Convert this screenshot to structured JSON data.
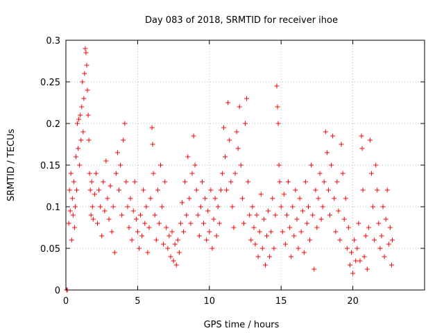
{
  "chart_data": {
    "type": "scatter",
    "title": "Day 083 of 2018, SRMTID for receiver ihoe",
    "xlabel": "GPS time / hours",
    "ylabel": "SRMTID / TECUs",
    "xlim": [
      0,
      25
    ],
    "ylim": [
      0,
      0.3
    ],
    "x_ticks": [
      0,
      5,
      10,
      15,
      20
    ],
    "y_ticks": [
      0,
      0.05,
      0.1,
      0.15,
      0.2,
      0.25,
      0.3
    ],
    "x_tick_labels": [
      "0",
      "5",
      "10",
      "15",
      "20"
    ],
    "y_tick_labels": [
      "0",
      "0.05",
      "0.1",
      "0.15",
      "0.2",
      "0.25",
      "0.3"
    ],
    "grid": true,
    "marker": "+",
    "series": [
      {
        "name": "SRMTID",
        "color": "#ff0000",
        "points": [
          [
            0.05,
            0.0
          ],
          [
            0.1,
            0.0
          ],
          [
            0.2,
            0.08
          ],
          [
            0.25,
            0.12
          ],
          [
            0.3,
            0.095
          ],
          [
            0.35,
            0.14
          ],
          [
            0.4,
            0.06
          ],
          [
            0.45,
            0.11
          ],
          [
            0.5,
            0.09
          ],
          [
            0.55,
            0.13
          ],
          [
            0.6,
            0.075
          ],
          [
            0.65,
            0.1
          ],
          [
            0.7,
            0.16
          ],
          [
            0.75,
            0.12
          ],
          [
            0.8,
            0.2
          ],
          [
            0.85,
            0.17
          ],
          [
            0.9,
            0.205
          ],
          [
            0.95,
            0.15
          ],
          [
            1.0,
            0.21
          ],
          [
            1.05,
            0.18
          ],
          [
            1.1,
            0.22
          ],
          [
            1.15,
            0.25
          ],
          [
            1.2,
            0.19
          ],
          [
            1.25,
            0.23
          ],
          [
            1.3,
            0.26
          ],
          [
            1.35,
            0.29
          ],
          [
            1.4,
            0.285
          ],
          [
            1.45,
            0.27
          ],
          [
            1.5,
            0.24
          ],
          [
            1.55,
            0.21
          ],
          [
            1.6,
            0.18
          ],
          [
            1.65,
            0.14
          ],
          [
            1.7,
            0.12
          ],
          [
            1.75,
            0.09
          ],
          [
            1.8,
            0.13
          ],
          [
            1.85,
            0.1
          ],
          [
            1.9,
            0.085
          ],
          [
            2.0,
            0.115
          ],
          [
            2.1,
            0.14
          ],
          [
            2.2,
            0.08
          ],
          [
            2.3,
            0.12
          ],
          [
            2.4,
            0.1
          ],
          [
            2.5,
            0.065
          ],
          [
            2.6,
            0.13
          ],
          [
            2.7,
            0.095
          ],
          [
            2.8,
            0.155
          ],
          [
            2.9,
            0.11
          ],
          [
            3.0,
            0.085
          ],
          [
            3.1,
            0.125
          ],
          [
            3.2,
            0.07
          ],
          [
            3.3,
            0.1
          ],
          [
            3.4,
            0.045
          ],
          [
            3.5,
            0.14
          ],
          [
            3.6,
            0.165
          ],
          [
            3.7,
            0.12
          ],
          [
            3.8,
            0.15
          ],
          [
            3.9,
            0.09
          ],
          [
            4.0,
            0.18
          ],
          [
            4.1,
            0.2
          ],
          [
            4.2,
            0.13
          ],
          [
            4.3,
            0.1
          ],
          [
            4.4,
            0.075
          ],
          [
            4.5,
            0.11
          ],
          [
            4.6,
            0.06
          ],
          [
            4.7,
            0.095
          ],
          [
            4.8,
            0.13
          ],
          [
            4.9,
            0.085
          ],
          [
            5.0,
            0.07
          ],
          [
            5.1,
            0.05
          ],
          [
            5.2,
            0.09
          ],
          [
            5.3,
            0.065
          ],
          [
            5.4,
            0.12
          ],
          [
            5.5,
            0.08
          ],
          [
            5.6,
            0.1
          ],
          [
            5.7,
            0.045
          ],
          [
            5.8,
            0.075
          ],
          [
            5.9,
            0.11
          ],
          [
            6.0,
            0.195
          ],
          [
            6.05,
            0.175
          ],
          [
            6.1,
            0.14
          ],
          [
            6.2,
            0.09
          ],
          [
            6.3,
            0.06
          ],
          [
            6.4,
            0.12
          ],
          [
            6.5,
            0.08
          ],
          [
            6.6,
            0.15
          ],
          [
            6.7,
            0.1
          ],
          [
            6.8,
            0.055
          ],
          [
            6.9,
            0.13
          ],
          [
            7.0,
            0.075
          ],
          [
            7.1,
            0.05
          ],
          [
            7.2,
            0.065
          ],
          [
            7.3,
            0.04
          ],
          [
            7.4,
            0.07
          ],
          [
            7.5,
            0.035
          ],
          [
            7.6,
            0.055
          ],
          [
            7.7,
            0.03
          ],
          [
            7.8,
            0.06
          ],
          [
            7.9,
            0.045
          ],
          [
            8.0,
            0.08
          ],
          [
            8.1,
            0.105
          ],
          [
            8.2,
            0.07
          ],
          [
            8.3,
            0.13
          ],
          [
            8.4,
            0.09
          ],
          [
            8.5,
            0.16
          ],
          [
            8.6,
            0.11
          ],
          [
            8.7,
            0.08
          ],
          [
            8.8,
            0.14
          ],
          [
            8.9,
            0.185
          ],
          [
            9.0,
            0.15
          ],
          [
            9.1,
            0.12
          ],
          [
            9.2,
            0.09
          ],
          [
            9.3,
            0.065
          ],
          [
            9.4,
            0.1
          ],
          [
            9.5,
            0.13
          ],
          [
            9.6,
            0.08
          ],
          [
            9.7,
            0.11
          ],
          [
            9.8,
            0.06
          ],
          [
            9.9,
            0.095
          ],
          [
            10.0,
            0.07
          ],
          [
            10.1,
            0.12
          ],
          [
            10.2,
            0.05
          ],
          [
            10.3,
            0.085
          ],
          [
            10.4,
            0.11
          ],
          [
            10.5,
            0.065
          ],
          [
            10.6,
            0.1
          ],
          [
            10.7,
            0.08
          ],
          [
            10.8,
            0.12
          ],
          [
            10.9,
            0.14
          ],
          [
            11.0,
            0.195
          ],
          [
            11.1,
            0.16
          ],
          [
            11.2,
            0.12
          ],
          [
            11.3,
            0.225
          ],
          [
            11.4,
            0.18
          ],
          [
            11.5,
            0.13
          ],
          [
            11.6,
            0.1
          ],
          [
            11.7,
            0.075
          ],
          [
            11.8,
            0.14
          ],
          [
            11.9,
            0.19
          ],
          [
            12.0,
            0.17
          ],
          [
            12.1,
            0.22
          ],
          [
            12.2,
            0.15
          ],
          [
            12.3,
            0.11
          ],
          [
            12.4,
            0.08
          ],
          [
            12.5,
            0.2
          ],
          [
            12.6,
            0.23
          ],
          [
            12.7,
            0.13
          ],
          [
            12.8,
            0.09
          ],
          [
            12.9,
            0.06
          ],
          [
            13.0,
            0.1
          ],
          [
            13.1,
            0.075
          ],
          [
            13.2,
            0.055
          ],
          [
            13.3,
            0.09
          ],
          [
            13.4,
            0.04
          ],
          [
            13.5,
            0.07
          ],
          [
            13.6,
            0.115
          ],
          [
            13.7,
            0.05
          ],
          [
            13.8,
            0.085
          ],
          [
            13.9,
            0.03
          ],
          [
            14.0,
            0.065
          ],
          [
            14.1,
            0.095
          ],
          [
            14.2,
            0.04
          ],
          [
            14.3,
            0.07
          ],
          [
            14.4,
            0.11
          ],
          [
            14.5,
            0.05
          ],
          [
            14.6,
            0.09
          ],
          [
            14.7,
            0.245
          ],
          [
            14.75,
            0.22
          ],
          [
            14.8,
            0.2
          ],
          [
            14.85,
            0.15
          ],
          [
            14.9,
            0.13
          ],
          [
            15.0,
            0.1
          ],
          [
            15.1,
            0.07
          ],
          [
            15.2,
            0.115
          ],
          [
            15.3,
            0.055
          ],
          [
            15.4,
            0.09
          ],
          [
            15.5,
            0.13
          ],
          [
            15.6,
            0.075
          ],
          [
            15.7,
            0.04
          ],
          [
            15.8,
            0.1
          ],
          [
            15.9,
            0.065
          ],
          [
            16.0,
            0.12
          ],
          [
            16.1,
            0.085
          ],
          [
            16.2,
            0.05
          ],
          [
            16.3,
            0.11
          ],
          [
            16.4,
            0.07
          ],
          [
            16.5,
            0.095
          ],
          [
            16.6,
            0.045
          ],
          [
            16.7,
            0.13
          ],
          [
            16.8,
            0.08
          ],
          [
            16.9,
            0.1
          ],
          [
            17.0,
            0.06
          ],
          [
            17.1,
            0.15
          ],
          [
            17.2,
            0.09
          ],
          [
            17.3,
            0.025
          ],
          [
            17.4,
            0.12
          ],
          [
            17.5,
            0.075
          ],
          [
            17.6,
            0.11
          ],
          [
            17.7,
            0.14
          ],
          [
            17.8,
            0.085
          ],
          [
            17.9,
            0.1
          ],
          [
            18.0,
            0.13
          ],
          [
            18.1,
            0.19
          ],
          [
            18.2,
            0.165
          ],
          [
            18.3,
            0.12
          ],
          [
            18.4,
            0.09
          ],
          [
            18.5,
            0.15
          ],
          [
            18.6,
            0.185
          ],
          [
            18.7,
            0.11
          ],
          [
            18.8,
            0.07
          ],
          [
            18.9,
            0.13
          ],
          [
            19.0,
            0.095
          ],
          [
            19.1,
            0.06
          ],
          [
            19.2,
            0.175
          ],
          [
            19.3,
            0.14
          ],
          [
            19.4,
            0.085
          ],
          [
            19.5,
            0.11
          ],
          [
            19.6,
            0.05
          ],
          [
            19.7,
            0.075
          ],
          [
            19.8,
            0.03
          ],
          [
            19.9,
            0.045
          ],
          [
            20.0,
            0.02
          ],
          [
            20.1,
            0.06
          ],
          [
            20.2,
            0.035
          ],
          [
            20.3,
            0.05
          ],
          [
            20.4,
            0.08
          ],
          [
            20.5,
            0.035
          ],
          [
            20.6,
            0.185
          ],
          [
            20.65,
            0.17
          ],
          [
            20.7,
            0.12
          ],
          [
            20.8,
            0.04
          ],
          [
            20.9,
            0.065
          ],
          [
            21.0,
            0.025
          ],
          [
            21.1,
            0.075
          ],
          [
            21.2,
            0.18
          ],
          [
            21.3,
            0.14
          ],
          [
            21.4,
            0.1
          ],
          [
            21.5,
            0.06
          ],
          [
            21.6,
            0.15
          ],
          [
            21.7,
            0.12
          ],
          [
            21.8,
            0.08
          ],
          [
            21.9,
            0.05
          ],
          [
            22.0,
            0.065
          ],
          [
            22.1,
            0.1
          ],
          [
            22.2,
            0.04
          ],
          [
            22.3,
            0.085
          ],
          [
            22.4,
            0.12
          ],
          [
            22.5,
            0.055
          ],
          [
            22.6,
            0.075
          ],
          [
            22.7,
            0.03
          ],
          [
            22.75,
            0.06
          ]
        ]
      }
    ]
  }
}
